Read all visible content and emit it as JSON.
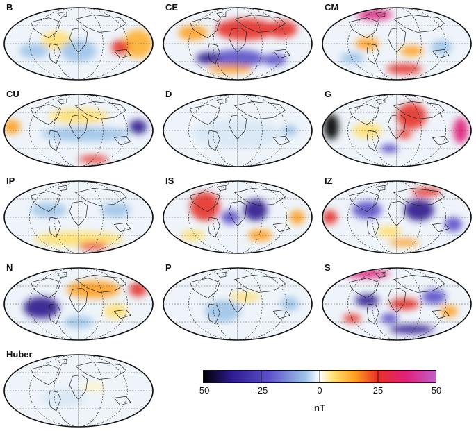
{
  "figure": {
    "panels": [
      {
        "id": "B",
        "label": "B"
      },
      {
        "id": "CE",
        "label": "CE"
      },
      {
        "id": "CM",
        "label": "CM"
      },
      {
        "id": "CU",
        "label": "CU"
      },
      {
        "id": "D",
        "label": "D"
      },
      {
        "id": "G",
        "label": "G"
      },
      {
        "id": "IP",
        "label": "IP"
      },
      {
        "id": "IS",
        "label": "IS"
      },
      {
        "id": "IZ",
        "label": "IZ"
      },
      {
        "id": "N",
        "label": "N"
      },
      {
        "id": "P",
        "label": "P"
      },
      {
        "id": "S",
        "label": "S"
      },
      {
        "id": "Huber",
        "label": "Huber"
      }
    ],
    "colorbar": {
      "unit": "nT",
      "ticks": [
        "-50",
        "-25",
        "0",
        "25",
        "50"
      ],
      "range": [
        -50,
        50
      ],
      "colors": [
        "#000000",
        "#2d1a8e",
        "#5a4fc8",
        "#9fc4e8",
        "#ffffff",
        "#ffe070",
        "#ffa020",
        "#e8302a",
        "#e0207a",
        "#c060c8"
      ]
    }
  },
  "style": {
    "background": "#ffffff",
    "land_outline": "#222222",
    "contour": "#888888",
    "graticule": "#444444"
  }
}
